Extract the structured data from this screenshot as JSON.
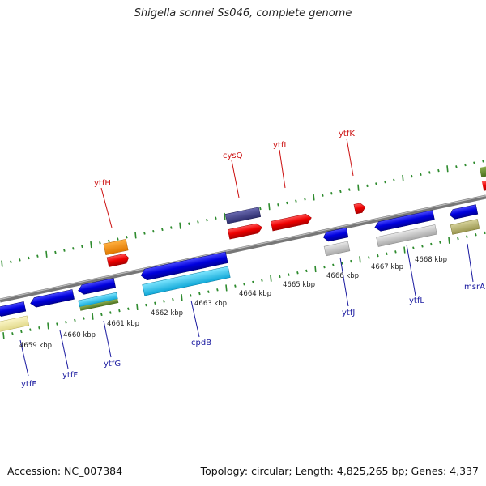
{
  "title": "Shigella sonnei Ss046, complete genome",
  "footer": {
    "accession": "Accession: NC_007384",
    "summary": "Topology: circular; Length: 4,825,265 bp; Genes: 4,337"
  },
  "colors": {
    "backbone": "#8a8a8a",
    "tick": "#2e8b2e",
    "label_top": "#cc1111",
    "label_bottom": "#1a1aa0"
  },
  "kbp_labels": [
    "4659 kbp",
    "4660 kbp",
    "4661 kbp",
    "4662 kbp",
    "4663 kbp",
    "4664 kbp",
    "4665 kbp",
    "4666 kbp",
    "4667 kbp",
    "4668 kbp"
  ],
  "gene_labels_top": [
    "ytfH",
    "cysQ",
    "ytfI",
    "ytfK"
  ],
  "gene_labels_bottom": [
    "ytfE",
    "ytfF",
    "ytfG",
    "cpdB",
    "ytfJ",
    "ytfL",
    "msrA"
  ]
}
